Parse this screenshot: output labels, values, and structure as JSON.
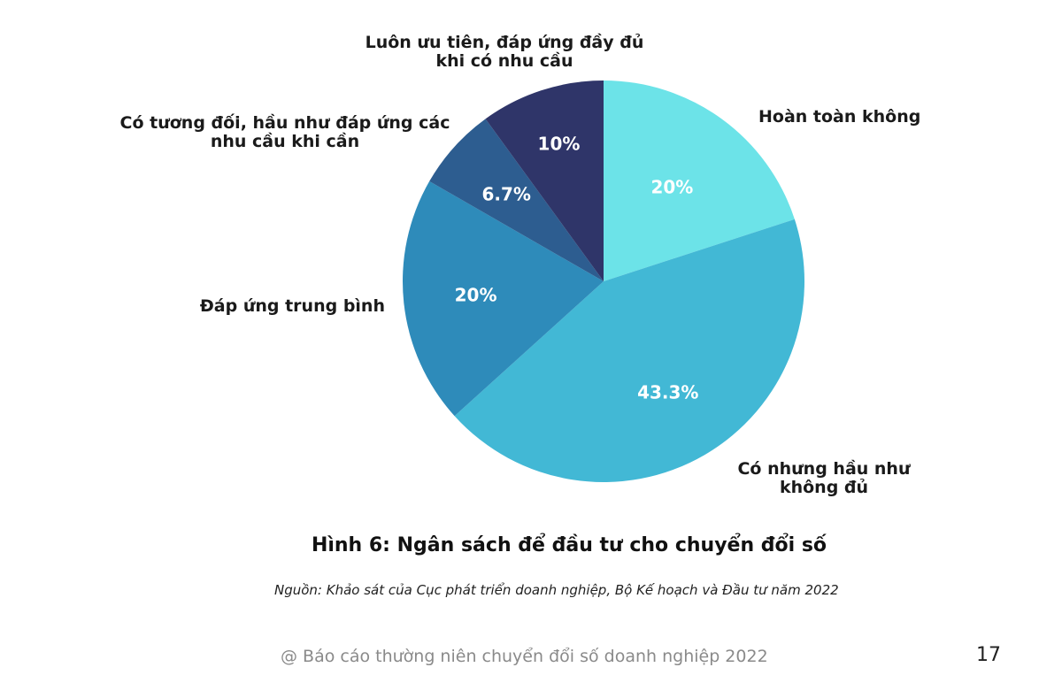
{
  "chart_data": {
    "type": "pie",
    "title": "Hình 6: Ngân sách để đầu tư cho chuyển đổi số",
    "source": "Nguồn: Khảo sát của Cục phát triển doanh nghiệp, Bộ Kế hoạch và Đầu tư năm 2022",
    "slices": [
      {
        "label_lines": [
          "Hoàn toàn không"
        ],
        "value": 20,
        "value_label": "20%",
        "color": "#6ce3e8"
      },
      {
        "label_lines": [
          "Có nhưng hầu như",
          "không đủ"
        ],
        "value": 43.3,
        "value_label": "43.3%",
        "color": "#42b8d5"
      },
      {
        "label_lines": [
          "Đáp ứng trung bình"
        ],
        "value": 20,
        "value_label": "20%",
        "color": "#2e8bba"
      },
      {
        "label_lines": [
          "Có tương đối, hầu như đáp ứng các",
          "nhu cầu khi cần"
        ],
        "value": 6.7,
        "value_label": "6.7%",
        "color": "#2d5d90"
      },
      {
        "label_lines": [
          "Luôn ưu tiên, đáp ứng đầy đủ",
          "khi có nhu cầu"
        ],
        "value": 10,
        "value_label": "10%",
        "color": "#2f3569"
      }
    ]
  },
  "footer": {
    "text": "@ Báo cáo thường niên chuyển đổi số doanh nghiệp 2022",
    "page_number": "17"
  }
}
